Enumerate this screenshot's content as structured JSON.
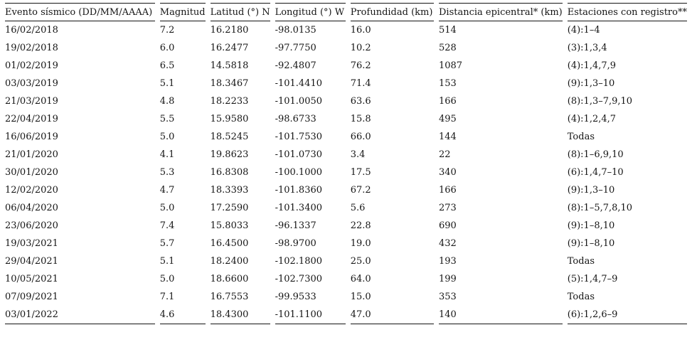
{
  "page": {
    "background_color": "#ffffff",
    "text_color": "#151515",
    "rule_color": "#151515"
  },
  "table": {
    "columns": [
      "Evento sísmico (DD/MM/AAAA)",
      "Magnitud",
      "Latitud (°) N",
      "Longitud (°) W",
      "Profundidad (km)",
      "Distancia epicentral* (km)",
      "Estaciones con registro**"
    ],
    "rows": [
      [
        "16/02/2018",
        "7.2",
        "16.2180",
        "-98.0135",
        "16.0",
        "514",
        "(4):1–4"
      ],
      [
        "19/02/2018",
        "6.0",
        "16.2477",
        "-97.7750",
        "10.2",
        "528",
        "(3):1,3,4"
      ],
      [
        "01/02/2019",
        "6.5",
        "14.5818",
        "-92.4807",
        "76.2",
        "1087",
        "(4):1,4,7,9"
      ],
      [
        "03/03/2019",
        "5.1",
        "18.3467",
        "-101.4410",
        "71.4",
        "153",
        "(9):1,3–10"
      ],
      [
        "21/03/2019",
        "4.8",
        "18.2233",
        "-101.0050",
        "63.6",
        "166",
        "(8):1,3–7,9,10"
      ],
      [
        "22/04/2019",
        "5.5",
        "15.9580",
        "-98.6733",
        "15.8",
        "495",
        "(4):1,2,4,7"
      ],
      [
        "16/06/2019",
        "5.0",
        "18.5245",
        "-101.7530",
        "66.0",
        "144",
        "Todas"
      ],
      [
        "21/01/2020",
        "4.1",
        "19.8623",
        "-101.0730",
        "3.4",
        "22",
        "(8):1–6,9,10"
      ],
      [
        "30/01/2020",
        "5.3",
        "16.8308",
        "-100.1000",
        "17.5",
        "340",
        "(6):1,4,7–10"
      ],
      [
        "12/02/2020",
        "4.7",
        "18.3393",
        "-101.8360",
        "67.2",
        "166",
        "(9):1,3–10"
      ],
      [
        "06/04/2020",
        "5.0",
        "17.2590",
        "-101.3400",
        "5.6",
        "273",
        "(8):1–5,7,8,10"
      ],
      [
        "23/06/2020",
        "7.4",
        "15.8033",
        "-96.1337",
        "22.8",
        "690",
        "(9):1–8,10"
      ],
      [
        "19/03/2021",
        "5.7",
        "16.4500",
        "-98.9700",
        "19.0",
        "432",
        "(9):1–8,10"
      ],
      [
        "29/04/2021",
        "5.1",
        "18.2400",
        "-102.1800",
        "25.0",
        "193",
        "Todas"
      ],
      [
        "10/05/2021",
        "5.0",
        "18.6600",
        "-102.7300",
        "64.0",
        "199",
        "(5):1,4,7–9"
      ],
      [
        "07/09/2021",
        "7.1",
        "16.7553",
        "-99.9533",
        "15.0",
        "353",
        "Todas"
      ],
      [
        "03/01/2022",
        "4.6",
        "18.4300",
        "-101.1100",
        "47.0",
        "140",
        "(6):1,2,6–9"
      ]
    ]
  }
}
